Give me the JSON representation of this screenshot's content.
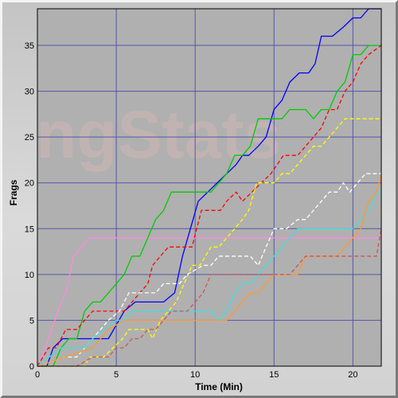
{
  "watermark": "ngStats",
  "chart_data": {
    "type": "line",
    "title": "",
    "xlabel": "Time (Min)",
    "ylabel": "Frags",
    "xlim": [
      0,
      21.8
    ],
    "ylim": [
      0,
      39
    ],
    "xticks": [
      0,
      5,
      10,
      15,
      20
    ],
    "yticks": [
      0,
      5,
      10,
      15,
      20,
      25,
      30,
      35
    ],
    "grid": true,
    "legend": "none",
    "series": [
      {
        "color": "#ff88dd",
        "dash": "solid",
        "x": [
          0,
          0.5,
          0.9,
          1.3,
          1.8,
          2.3,
          3.3,
          5,
          10,
          15,
          21.8
        ],
        "y": [
          0,
          2,
          4,
          6,
          8,
          12,
          14,
          14,
          14,
          14,
          14
        ]
      },
      {
        "color": "#0000ff",
        "dash": "solid",
        "x": [
          0,
          0.6,
          1.0,
          1.6,
          2.2,
          3.5,
          4.5,
          5.5,
          6.2,
          8.0,
          8.7,
          9.2,
          9.7,
          10.2,
          10.8,
          11.4,
          12.0,
          12.6,
          13.0,
          13.4,
          14.0,
          14.5,
          15.0,
          15.5,
          16.0,
          16.6,
          17.2,
          17.6,
          18.0,
          18.7,
          19.4,
          20.0,
          20.5,
          21.0,
          21.5,
          21.8
        ],
        "y": [
          0,
          0,
          2,
          3,
          3,
          3,
          3,
          6,
          7,
          7,
          8,
          12,
          15,
          18,
          19,
          20,
          21,
          22,
          23,
          23,
          24,
          25,
          28,
          29,
          31,
          32,
          32,
          33,
          36,
          36,
          37,
          38,
          38,
          39,
          39,
          39
        ]
      },
      {
        "color": "#00cc00",
        "dash": "solid",
        "x": [
          0,
          1.0,
          1.5,
          2.0,
          2.5,
          3.0,
          3.5,
          4.0,
          5.0,
          5.5,
          6.0,
          6.5,
          7.0,
          7.5,
          8.0,
          8.5,
          9.0,
          9.5,
          10.0,
          11.0,
          12.0,
          12.5,
          13.0,
          13.5,
          14.0,
          14.6,
          15.0,
          15.5,
          16.0,
          16.5,
          17.0,
          17.5,
          18.0,
          18.5,
          19.0,
          19.5,
          20.0,
          20.5,
          21.0,
          21.8
        ],
        "y": [
          0,
          0,
          2,
          3,
          3,
          6,
          7,
          7,
          9,
          10,
          12,
          12,
          14,
          16,
          17,
          19,
          19,
          19,
          19,
          19,
          21,
          23,
          23,
          24,
          27,
          27,
          27,
          27,
          28,
          28,
          28,
          27,
          28,
          28,
          30,
          31,
          34,
          34,
          35,
          35
        ]
      },
      {
        "color": "#ff0000",
        "dash": "dash",
        "x": [
          0,
          0.7,
          1.2,
          1.8,
          2.5,
          3.0,
          3.5,
          4.5,
          5.0,
          5.5,
          6.0,
          6.5,
          7.0,
          7.3,
          7.8,
          8.3,
          8.8,
          9.3,
          9.8,
          10.4,
          11.0,
          11.6,
          12.0,
          12.6,
          13.0,
          13.6,
          14.2,
          14.8,
          15.2,
          15.6,
          16.0,
          16.5,
          17.0,
          17.5,
          18.0,
          18.5,
          19.0,
          19.5,
          20.0,
          20.5,
          21.0,
          21.8
        ],
        "y": [
          0,
          2,
          2,
          4,
          4,
          5,
          6,
          6,
          6,
          6,
          7,
          8,
          9,
          11,
          12,
          13,
          13,
          13,
          13,
          17,
          17,
          17,
          18,
          19,
          18,
          19,
          20,
          21,
          22,
          23,
          23,
          23,
          24,
          25,
          26,
          28,
          28,
          30,
          31,
          33,
          34,
          35
        ]
      },
      {
        "color": "#ffff00",
        "dash": "dash",
        "x": [
          0,
          1.5,
          2.5,
          3.0,
          3.3,
          4.2,
          4.8,
          5.4,
          5.8,
          6.5,
          7.0,
          7.3,
          7.8,
          8.3,
          8.8,
          9.3,
          9.8,
          10.3,
          11.0,
          11.5,
          12.0,
          12.5,
          13.0,
          13.4,
          13.9,
          14.5,
          15.0,
          15.5,
          16.0,
          16.5,
          17.0,
          17.5,
          18.0,
          18.5,
          19.0,
          19.5,
          20.0,
          20.5,
          21.0,
          21.8
        ],
        "y": [
          0,
          0,
          0,
          0,
          1,
          1,
          2,
          3,
          4,
          4,
          4,
          3,
          5,
          6,
          7,
          9,
          11,
          11,
          13,
          13,
          14,
          15,
          16,
          17,
          20,
          20,
          20,
          21,
          21,
          22,
          23,
          24,
          24,
          25,
          26,
          27,
          27,
          27,
          27,
          27
        ]
      },
      {
        "color": "#ffffff",
        "dash": "dash",
        "x": [
          0,
          1.8,
          2.5,
          3.5,
          4.5,
          5.2,
          5.8,
          6.5,
          7.5,
          8.0,
          9.0,
          9.5,
          10.5,
          11.0,
          11.5,
          12.5,
          13.0,
          13.5,
          14.0,
          14.5,
          15.0,
          15.8,
          16.5,
          17.0,
          17.5,
          18.0,
          18.5,
          19.0,
          19.4,
          19.8,
          20.3,
          20.8,
          21.2,
          21.8
        ],
        "y": [
          0,
          1,
          1,
          3,
          5,
          6,
          8,
          8,
          8,
          9,
          9,
          10,
          11,
          11,
          12,
          12,
          12,
          12,
          11,
          13,
          15,
          15,
          16,
          16,
          17,
          18,
          19,
          19,
          20,
          19,
          20,
          21,
          21,
          21
        ]
      },
      {
        "color": "#44dddd",
        "dash": "solid",
        "x": [
          0,
          1.5,
          2.5,
          3.0,
          3.5,
          5.0,
          5.5,
          6.0,
          7.0,
          8.0,
          9.0,
          10.0,
          11.0,
          11.5,
          12.0,
          12.5,
          13.0,
          13.5,
          14.0,
          14.5,
          15.0,
          15.5,
          16.0,
          16.5,
          17.0,
          17.5,
          18.0,
          18.5,
          19.0,
          19.5,
          20.0,
          20.5,
          21.0,
          21.5,
          21.8
        ],
        "y": [
          0,
          2,
          2,
          2,
          3,
          5,
          5,
          6,
          6,
          6,
          6,
          6,
          6,
          5,
          6,
          8,
          9,
          9,
          10,
          11,
          12,
          13,
          14,
          15,
          15,
          15,
          15,
          15,
          15,
          15,
          15,
          16,
          17,
          19,
          19
        ]
      },
      {
        "color": "#ff9933",
        "dash": "solid",
        "x": [
          0,
          1.8,
          3.5,
          4.5,
          5.5,
          6.5,
          7.5,
          8.5,
          9.5,
          10.5,
          11.5,
          12.0,
          12.5,
          13.0,
          13.5,
          14.0,
          14.5,
          15.0,
          15.5,
          16.0,
          16.5,
          17.0,
          17.5,
          18.0,
          18.5,
          19.0,
          19.5,
          20.0,
          20.5,
          21.0,
          21.5,
          21.8
        ],
        "y": [
          0,
          1,
          2,
          4,
          5,
          5,
          5,
          5,
          5,
          5,
          5,
          5,
          6,
          7,
          8,
          8,
          9,
          10,
          10,
          10,
          10,
          12,
          12,
          12,
          12,
          12,
          13,
          14,
          15,
          18,
          19,
          21
        ]
      },
      {
        "color": "#cc5555",
        "dash": "dash",
        "x": [
          0,
          2.5,
          3.5,
          4.5,
          5.0,
          5.5,
          6.0,
          6.5,
          7.0,
          7.5,
          8.0,
          8.5,
          9.0,
          9.5,
          10.0,
          10.5,
          11.0,
          11.5,
          12.0,
          13.0,
          14.0,
          15.0,
          16.0,
          16.5,
          17.0,
          18.0,
          19.0,
          20.0,
          20.5,
          21.0,
          21.5,
          21.8
        ],
        "y": [
          0,
          0,
          1,
          1,
          2,
          2,
          3,
          3,
          4,
          4,
          5,
          6,
          6,
          6,
          7,
          8,
          10,
          10,
          10,
          10,
          10,
          10,
          10,
          11,
          12,
          12,
          12,
          12,
          12,
          12,
          12,
          15
        ]
      }
    ]
  }
}
